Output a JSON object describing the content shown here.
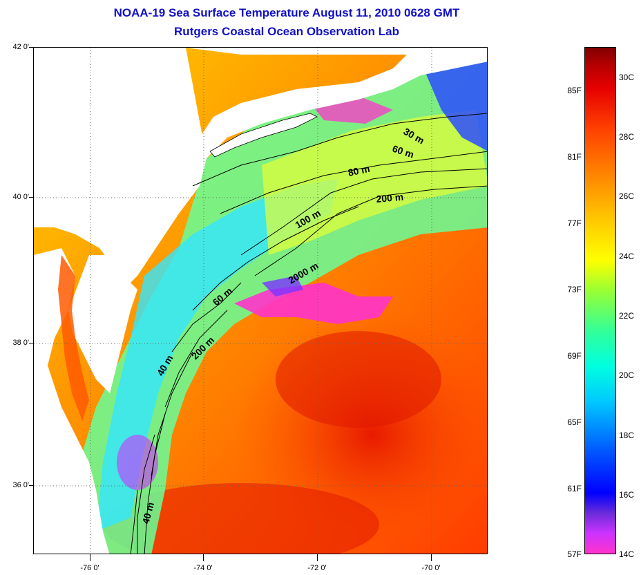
{
  "title": {
    "line1": "NOAA-19 Sea Surface Temperature August 11, 2010 0628 GMT",
    "line2": "Rutgers Coastal Ocean Observation Lab"
  },
  "map": {
    "lat_labels": [
      "42 0'",
      "40 0'",
      "38 0'",
      "36 0'"
    ],
    "lon_labels": [
      "-76 0'",
      "-74 0'",
      "-72 0'",
      "-70 0'"
    ],
    "depth_labels": [
      "30 m",
      "60 m",
      "80 m",
      "200 m",
      "100 m",
      "2000 m",
      "60 m",
      "200 m",
      "40 m",
      "40 m"
    ],
    "colors": {
      "ocean_warm": "#ff5000",
      "ocean_hot": "#e61e00",
      "shelf_cool": "#33ffcc",
      "upwelling": "#ff33cc",
      "land": "#ffffff"
    }
  },
  "colorbar": {
    "fahrenheit": [
      "85F",
      "81F",
      "77F",
      "73F",
      "69F",
      "65F",
      "61F",
      "57F"
    ],
    "celsius": [
      "30C",
      "28C",
      "26C",
      "24C",
      "22C",
      "20C",
      "18C",
      "16C",
      "14C"
    ]
  }
}
